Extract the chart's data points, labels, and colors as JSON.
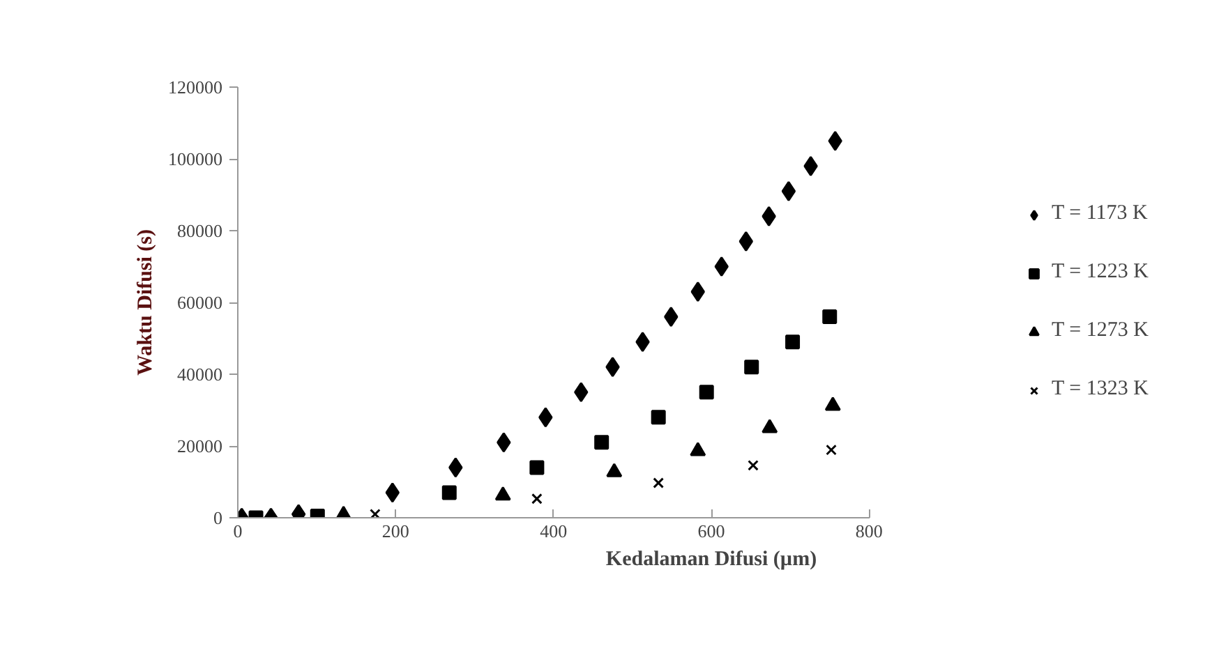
{
  "chart_data": {
    "type": "scatter",
    "xlabel": "Kedalaman Difusi (µm)",
    "ylabel": "Waktu Difusi (s)",
    "xlim": [
      0,
      800
    ],
    "xticks": [
      0,
      200,
      400,
      600,
      800
    ],
    "ylim": [
      0,
      120000
    ],
    "yticks": [
      0,
      20000,
      40000,
      60000,
      80000,
      100000,
      120000
    ],
    "grid": false,
    "legend": "right",
    "series": [
      {
        "name": "T = 1173 K",
        "color": "#000000",
        "marker": "diamond",
        "x": [
          5,
          42,
          77,
          196,
          276,
          337,
          390,
          435,
          475,
          513,
          549,
          583,
          613,
          644,
          673,
          698,
          726,
          757
        ],
        "values": [
          0,
          0,
          1000,
          7000,
          14000,
          21000,
          28000,
          35000,
          42000,
          49000,
          56000,
          63000,
          70000,
          77000,
          84000,
          91000,
          98000,
          105000
        ]
      },
      {
        "name": "T = 1223 K",
        "color": "#000000",
        "marker": "square",
        "x": [
          23,
          101,
          268,
          379,
          461,
          533,
          594,
          651,
          703,
          750
        ],
        "values": [
          0,
          500,
          7000,
          14000,
          21000,
          28000,
          35000,
          42000,
          49000,
          56000
        ]
      },
      {
        "name": "T = 1273 K",
        "color": "#000000",
        "marker": "triangle",
        "x": [
          134,
          336,
          477,
          583,
          674,
          754
        ],
        "values": [
          800,
          6200,
          12700,
          18600,
          25000,
          31200
        ]
      },
      {
        "name": "T = 1323 K",
        "color": "#000000",
        "marker": "cross",
        "x": [
          174,
          379,
          533,
          653,
          752
        ],
        "values": [
          1000,
          5300,
          9700,
          14600,
          18900
        ]
      }
    ]
  }
}
